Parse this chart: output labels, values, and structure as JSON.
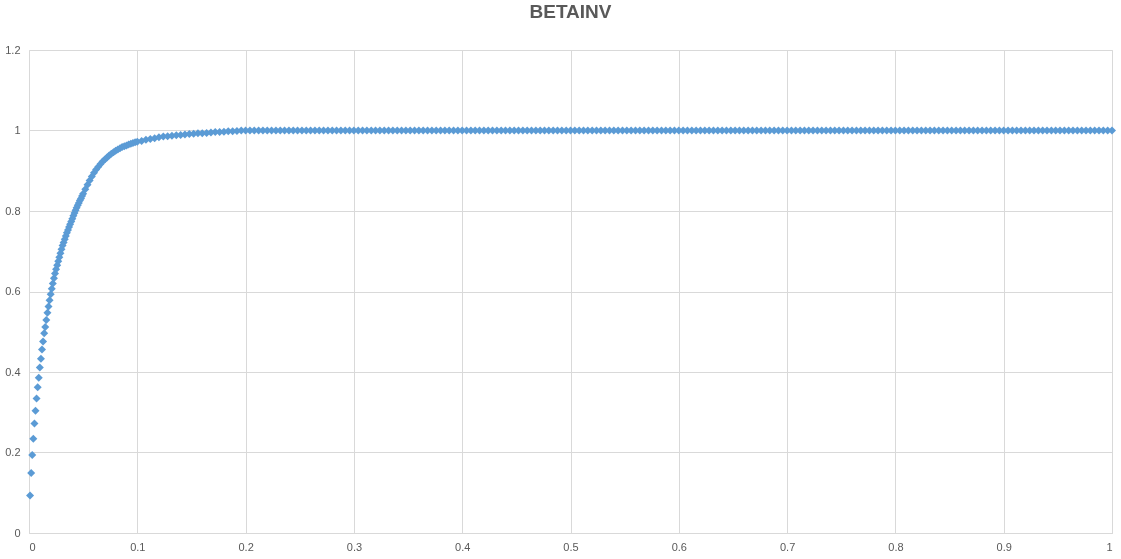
{
  "chart_data": {
    "type": "scatter",
    "title": "BETAINV",
    "marker": "diamond",
    "grid": true,
    "xlim": [
      0,
      1
    ],
    "ylim": [
      0,
      1.2
    ],
    "xticks": [
      0,
      0.1,
      0.2,
      0.3,
      0.4,
      0.5,
      0.6,
      0.7,
      0.8,
      0.9,
      1
    ],
    "yticks": [
      0,
      0.2,
      0.4,
      0.6,
      0.8,
      1,
      1.2
    ],
    "x": [
      0.001,
      0.002,
      0.003,
      0.004,
      0.005,
      0.006,
      0.007,
      0.008,
      0.009,
      0.01,
      0.011,
      0.012,
      0.013,
      0.014,
      0.015,
      0.016,
      0.017,
      0.018,
      0.019,
      0.02,
      0.021,
      0.022,
      0.023,
      0.024,
      0.025,
      0.026,
      0.027,
      0.028,
      0.029,
      0.03,
      0.031,
      0.032,
      0.033,
      0.034,
      0.035,
      0.036,
      0.037,
      0.038,
      0.039,
      0.04,
      0.041,
      0.042,
      0.043,
      0.044,
      0.045,
      0.046,
      0.047,
      0.048,
      0.049,
      0.05,
      0.052,
      0.054,
      0.056,
      0.058,
      0.06,
      0.062,
      0.064,
      0.066,
      0.068,
      0.07,
      0.072,
      0.074,
      0.076,
      0.078,
      0.08,
      0.082,
      0.084,
      0.086,
      0.088,
      0.09,
      0.092,
      0.094,
      0.096,
      0.098,
      0.1,
      0.104,
      0.108,
      0.112,
      0.116,
      0.12,
      0.124,
      0.128,
      0.132,
      0.136,
      0.14,
      0.144,
      0.148,
      0.152,
      0.156,
      0.16,
      0.164,
      0.168,
      0.172,
      0.176,
      0.18,
      0.184,
      0.188,
      0.192,
      0.196,
      0.2,
      0.204,
      0.208,
      0.212,
      0.216,
      0.22,
      0.224,
      0.228,
      0.232,
      0.236,
      0.24,
      0.244,
      0.248,
      0.252,
      0.256,
      0.26,
      0.264,
      0.268,
      0.272,
      0.276,
      0.28,
      0.284,
      0.288,
      0.292,
      0.296,
      0.3,
      0.304,
      0.308,
      0.312,
      0.316,
      0.32,
      0.324,
      0.328,
      0.332,
      0.336,
      0.34,
      0.344,
      0.348,
      0.352,
      0.356,
      0.36,
      0.364,
      0.368,
      0.372,
      0.376,
      0.38,
      0.384,
      0.388,
      0.392,
      0.396,
      0.4,
      0.404,
      0.408,
      0.412,
      0.416,
      0.42,
      0.424,
      0.428,
      0.432,
      0.436,
      0.44,
      0.444,
      0.448,
      0.452,
      0.456,
      0.46,
      0.464,
      0.468,
      0.472,
      0.476,
      0.48,
      0.484,
      0.488,
      0.492,
      0.496,
      0.5,
      0.504,
      0.508,
      0.512,
      0.516,
      0.52,
      0.524,
      0.528,
      0.532,
      0.536,
      0.54,
      0.544,
      0.548,
      0.552,
      0.556,
      0.56,
      0.564,
      0.568,
      0.572,
      0.576,
      0.58,
      0.584,
      0.588,
      0.592,
      0.596,
      0.6,
      0.604,
      0.608,
      0.612,
      0.616,
      0.62,
      0.624,
      0.628,
      0.632,
      0.636,
      0.64,
      0.644,
      0.648,
      0.652,
      0.656,
      0.66,
      0.664,
      0.668,
      0.672,
      0.676,
      0.68,
      0.684,
      0.688,
      0.692,
      0.696,
      0.7,
      0.704,
      0.708,
      0.712,
      0.716,
      0.72,
      0.724,
      0.728,
      0.732,
      0.736,
      0.74,
      0.744,
      0.748,
      0.752,
      0.756,
      0.76,
      0.764,
      0.768,
      0.772,
      0.776,
      0.78,
      0.784,
      0.788,
      0.792,
      0.796,
      0.8,
      0.804,
      0.808,
      0.812,
      0.816,
      0.82,
      0.824,
      0.828,
      0.832,
      0.836,
      0.84,
      0.844,
      0.848,
      0.852,
      0.856,
      0.86,
      0.864,
      0.868,
      0.872,
      0.876,
      0.88,
      0.884,
      0.888,
      0.892,
      0.896,
      0.9,
      0.904,
      0.908,
      0.912,
      0.916,
      0.92,
      0.924,
      0.928,
      0.932,
      0.936,
      0.94,
      0.944,
      0.948,
      0.952,
      0.956,
      0.96,
      0.964,
      0.968,
      0.972,
      0.976,
      0.98,
      0.984,
      0.988,
      0.992,
      0.996,
      1
    ],
    "series": [
      {
        "color": "#5b9bd5",
        "values": [
          0.093,
          0.149,
          0.194,
          0.234,
          0.272,
          0.304,
          0.334,
          0.362,
          0.386,
          0.411,
          0.433,
          0.456,
          0.476,
          0.496,
          0.512,
          0.529,
          0.547,
          0.563,
          0.578,
          0.593,
          0.607,
          0.62,
          0.633,
          0.645,
          0.655,
          0.665,
          0.675,
          0.685,
          0.695,
          0.705,
          0.714,
          0.722,
          0.73,
          0.738,
          0.746,
          0.753,
          0.76,
          0.767,
          0.774,
          0.781,
          0.788,
          0.795,
          0.802,
          0.808,
          0.814,
          0.82,
          0.826,
          0.831,
          0.837,
          0.843,
          0.854,
          0.865,
          0.876,
          0.886,
          0.895,
          0.903,
          0.91,
          0.917,
          0.923,
          0.928,
          0.933,
          0.938,
          0.942,
          0.946,
          0.95,
          0.953,
          0.956,
          0.959,
          0.961,
          0.963,
          0.965,
          0.967,
          0.969,
          0.971,
          0.972,
          0.974,
          0.977,
          0.979,
          0.981,
          0.983,
          0.985,
          0.986,
          0.987,
          0.988,
          0.989,
          0.99,
          0.991,
          0.992,
          0.993,
          0.993,
          0.994,
          0.995,
          0.996,
          0.996,
          0.997,
          0.998,
          0.998,
          0.999,
          1,
          1,
          1,
          1,
          1,
          1,
          1,
          1,
          1,
          1,
          1,
          1,
          1,
          1,
          1,
          1,
          1,
          1,
          1,
          1,
          1,
          1,
          1,
          1,
          1,
          1,
          1,
          1,
          1,
          1,
          1,
          1,
          1,
          1,
          1,
          1,
          1,
          1,
          1,
          1,
          1,
          1,
          1,
          1,
          1,
          1,
          1,
          1,
          1,
          1,
          1,
          1,
          1,
          1,
          1,
          1,
          1,
          1,
          1,
          1,
          1,
          1,
          1,
          1,
          1,
          1,
          1,
          1,
          1,
          1,
          1,
          1,
          1,
          1,
          1,
          1,
          1,
          1,
          1,
          1,
          1,
          1,
          1,
          1,
          1,
          1,
          1,
          1,
          1,
          1,
          1,
          1,
          1,
          1,
          1,
          1,
          1,
          1,
          1,
          1,
          1,
          1,
          1,
          1,
          1,
          1,
          1,
          1,
          1,
          1,
          1,
          1,
          1,
          1,
          1,
          1,
          1,
          1,
          1,
          1,
          1,
          1,
          1,
          1,
          1,
          1,
          1,
          1,
          1,
          1,
          1,
          1,
          1,
          1,
          1,
          1,
          1,
          1,
          1,
          1,
          1,
          1,
          1,
          1,
          1,
          1,
          1,
          1,
          1,
          1,
          1,
          1,
          1,
          1,
          1,
          1,
          1,
          1,
          1,
          1,
          1,
          1,
          1,
          1,
          1,
          1,
          1,
          1,
          1,
          1,
          1,
          1,
          1,
          1,
          1,
          1,
          1,
          1,
          1,
          1,
          1,
          1,
          1,
          1,
          1,
          1,
          1,
          1,
          1,
          1,
          1,
          1,
          1,
          1,
          1,
          1,
          1,
          1,
          1,
          1,
          1,
          1
        ]
      }
    ]
  }
}
